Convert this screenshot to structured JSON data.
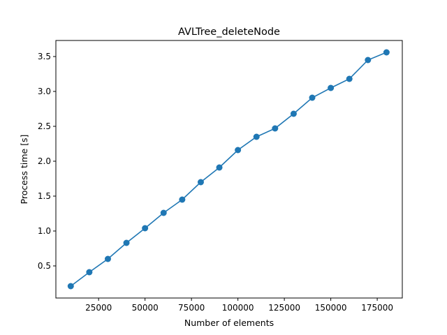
{
  "chart_data": {
    "type": "line",
    "title": "AVLTree_deleteNode",
    "xlabel": "Number of elements",
    "ylabel": "Process time [s]",
    "x": [
      10000,
      20000,
      30000,
      40000,
      50000,
      60000,
      70000,
      80000,
      90000,
      100000,
      110000,
      120000,
      130000,
      140000,
      150000,
      160000,
      170000,
      180000
    ],
    "series": [
      {
        "values": [
          0.21,
          0.41,
          0.6,
          0.83,
          1.04,
          1.26,
          1.45,
          1.7,
          1.91,
          2.16,
          2.35,
          2.47,
          2.68,
          2.91,
          3.05,
          3.18,
          3.45,
          3.56
        ],
        "color": "#1f77b4",
        "marker": "circle"
      }
    ],
    "xlim": [
      2000,
      188500
    ],
    "ylim": [
      0.04,
      3.73
    ],
    "xticks": [
      25000,
      50000,
      75000,
      100000,
      125000,
      150000,
      175000
    ],
    "xtick_labels": [
      "25000",
      "50000",
      "75000",
      "100000",
      "125000",
      "150000",
      "175000"
    ],
    "yticks": [
      0.5,
      1.0,
      1.5,
      2.0,
      2.5,
      3.0,
      3.5
    ],
    "ytick_labels": [
      "0.5",
      "1.0",
      "1.5",
      "2.0",
      "2.5",
      "3.0",
      "3.5"
    ],
    "grid": false,
    "legend": false
  }
}
